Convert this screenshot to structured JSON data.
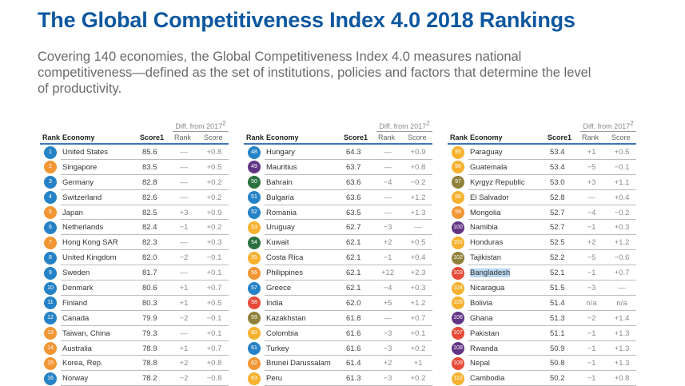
{
  "title": "The Global Competitiveness Index 4.0 2018 Rankings",
  "subtitle": "Covering 140 economies, the Global Competitiveness Index 4.0 measures national competitiveness—defined as the set of institutions, policies and factors that determine the level of productivity.",
  "headers": {
    "diff": "Diff. from 2017",
    "diff_sup": "2",
    "rank": "Rank",
    "economy": "Economy",
    "score": "Score1",
    "diff_rank": "Rank",
    "diff_score": "Score"
  },
  "region_colors": {
    "b": "#1b7cc4",
    "o": "#f2912a",
    "p": "#5a2b7e",
    "g": "#1f6a35",
    "y": "#f6ad23",
    "k": "#8a7a30",
    "r": "#e6412c"
  },
  "highlighted_economy": "Bangladesh",
  "tables": [
    {
      "rows": [
        {
          "rank": "1",
          "color": "b",
          "economy": "United States",
          "score": "85.6",
          "d_rank": "—",
          "d_score": "+0.8"
        },
        {
          "rank": "2",
          "color": "o",
          "economy": "Singapore",
          "score": "83.5",
          "d_rank": "—",
          "d_score": "+0.5"
        },
        {
          "rank": "3",
          "color": "b",
          "economy": "Germany",
          "score": "82.8",
          "d_rank": "—",
          "d_score": "+0.2"
        },
        {
          "rank": "4",
          "color": "b",
          "economy": "Switzerland",
          "score": "82.6",
          "d_rank": "—",
          "d_score": "+0.2"
        },
        {
          "rank": "5",
          "color": "o",
          "economy": "Japan",
          "score": "82.5",
          "d_rank": "+3",
          "d_score": "+0.9"
        },
        {
          "rank": "6",
          "color": "b",
          "economy": "Netherlands",
          "score": "82.4",
          "d_rank": "−1",
          "d_score": "+0.2"
        },
        {
          "rank": "7",
          "color": "o",
          "economy": "Hong Kong SAR",
          "score": "82.3",
          "d_rank": "—",
          "d_score": "+0.3"
        },
        {
          "rank": "8",
          "color": "b",
          "economy": "United Kingdom",
          "score": "82.0",
          "d_rank": "−2",
          "d_score": "−0.1"
        },
        {
          "rank": "9",
          "color": "b",
          "economy": "Sweden",
          "score": "81.7",
          "d_rank": "—",
          "d_score": "+0.1"
        },
        {
          "rank": "10",
          "color": "b",
          "economy": "Denmark",
          "score": "80.6",
          "d_rank": "+1",
          "d_score": "+0.7"
        },
        {
          "rank": "11",
          "color": "b",
          "economy": "Finland",
          "score": "80.3",
          "d_rank": "+1",
          "d_score": "+0.5"
        },
        {
          "rank": "12",
          "color": "b",
          "economy": "Canada",
          "score": "79.9",
          "d_rank": "−2",
          "d_score": "−0.1"
        },
        {
          "rank": "13",
          "color": "o",
          "economy": "Taiwan, China",
          "score": "79.3",
          "d_rank": "—",
          "d_score": "+0.1"
        },
        {
          "rank": "14",
          "color": "o",
          "economy": "Australia",
          "score": "78.9",
          "d_rank": "+1",
          "d_score": "+0.7"
        },
        {
          "rank": "15",
          "color": "o",
          "economy": "Korea, Rep.",
          "score": "78.8",
          "d_rank": "+2",
          "d_score": "+0.8"
        },
        {
          "rank": "16",
          "color": "b",
          "economy": "Norway",
          "score": "78.2",
          "d_rank": "−2",
          "d_score": "−0.8"
        }
      ]
    },
    {
      "rows": [
        {
          "rank": "48",
          "color": "b",
          "economy": "Hungary",
          "score": "64.3",
          "d_rank": "—",
          "d_score": "+0.9"
        },
        {
          "rank": "49",
          "color": "p",
          "economy": "Mauritius",
          "score": "63.7",
          "d_rank": "—",
          "d_score": "+0.8"
        },
        {
          "rank": "50",
          "color": "g",
          "economy": "Bahrain",
          "score": "63.6",
          "d_rank": "−4",
          "d_score": "−0.2"
        },
        {
          "rank": "51",
          "color": "b",
          "economy": "Bulgaria",
          "score": "63.6",
          "d_rank": "—",
          "d_score": "+1.2"
        },
        {
          "rank": "52",
          "color": "b",
          "economy": "Romania",
          "score": "63.5",
          "d_rank": "—",
          "d_score": "+1.3"
        },
        {
          "rank": "53",
          "color": "y",
          "economy": "Uruguay",
          "score": "62.7",
          "d_rank": "−3",
          "d_score": "—"
        },
        {
          "rank": "54",
          "color": "g",
          "economy": "Kuwait",
          "score": "62.1",
          "d_rank": "+2",
          "d_score": "+0.5"
        },
        {
          "rank": "55",
          "color": "y",
          "economy": "Costa Rica",
          "score": "62.1",
          "d_rank": "−1",
          "d_score": "+0.4"
        },
        {
          "rank": "56",
          "color": "o",
          "economy": "Philippines",
          "score": "62.1",
          "d_rank": "+12",
          "d_score": "+2.3"
        },
        {
          "rank": "57",
          "color": "b",
          "economy": "Greece",
          "score": "62.1",
          "d_rank": "−4",
          "d_score": "+0.3"
        },
        {
          "rank": "58",
          "color": "r",
          "economy": "India",
          "score": "62.0",
          "d_rank": "+5",
          "d_score": "+1.2"
        },
        {
          "rank": "59",
          "color": "k",
          "economy": "Kazakhstan",
          "score": "61.8",
          "d_rank": "—",
          "d_score": "+0.7"
        },
        {
          "rank": "60",
          "color": "y",
          "economy": "Colombia",
          "score": "61.6",
          "d_rank": "−3",
          "d_score": "+0.1"
        },
        {
          "rank": "61",
          "color": "b",
          "economy": "Turkey",
          "score": "61.6",
          "d_rank": "−3",
          "d_score": "+0.2"
        },
        {
          "rank": "62",
          "color": "o",
          "economy": "Brunei Darussalam",
          "score": "61.4",
          "d_rank": "+2",
          "d_score": "+1"
        },
        {
          "rank": "63",
          "color": "y",
          "economy": "Peru",
          "score": "61.3",
          "d_rank": "−3",
          "d_score": "+0.2"
        }
      ]
    },
    {
      "rows": [
        {
          "rank": "95",
          "color": "y",
          "economy": "Paraguay",
          "score": "53.4",
          "d_rank": "+1",
          "d_score": "+0.5"
        },
        {
          "rank": "96",
          "color": "y",
          "economy": "Guatemala",
          "score": "53.4",
          "d_rank": "−5",
          "d_score": "−0.1"
        },
        {
          "rank": "97",
          "color": "k",
          "economy": "Kyrgyz Republic",
          "score": "53.0",
          "d_rank": "+3",
          "d_score": "+1.1"
        },
        {
          "rank": "98",
          "color": "y",
          "economy": "El Salvador",
          "score": "52.8",
          "d_rank": "—",
          "d_score": "+0.4"
        },
        {
          "rank": "99",
          "color": "o",
          "economy": "Mongolia",
          "score": "52.7",
          "d_rank": "−4",
          "d_score": "−0.2"
        },
        {
          "rank": "100",
          "color": "p",
          "economy": "Namibia",
          "score": "52.7",
          "d_rank": "−1",
          "d_score": "+0.3"
        },
        {
          "rank": "101",
          "color": "y",
          "economy": "Honduras",
          "score": "52.5",
          "d_rank": "+2",
          "d_score": "+1.2"
        },
        {
          "rank": "102",
          "color": "k",
          "economy": "Tajikistan",
          "score": "52.2",
          "d_rank": "−5",
          "d_score": "−0.6"
        },
        {
          "rank": "103",
          "color": "r",
          "economy": "Bangladesh",
          "score": "52.1",
          "d_rank": "−1",
          "d_score": "+0.7"
        },
        {
          "rank": "104",
          "color": "y",
          "economy": "Nicaragua",
          "score": "51.5",
          "d_rank": "−3",
          "d_score": "—"
        },
        {
          "rank": "105",
          "color": "y",
          "economy": "Bolivia",
          "score": "51.4",
          "d_rank": "n/a",
          "d_score": "n/a"
        },
        {
          "rank": "106",
          "color": "p",
          "economy": "Ghana",
          "score": "51.3",
          "d_rank": "−2",
          "d_score": "+1.4"
        },
        {
          "rank": "107",
          "color": "r",
          "economy": "Pakistan",
          "score": "51.1",
          "d_rank": "−1",
          "d_score": "+1.3"
        },
        {
          "rank": "108",
          "color": "p",
          "economy": "Rwanda",
          "score": "50.9",
          "d_rank": "−1",
          "d_score": "+1.3"
        },
        {
          "rank": "109",
          "color": "r",
          "economy": "Nepal",
          "score": "50.8",
          "d_rank": "−1",
          "d_score": "+1.3"
        },
        {
          "rank": "110",
          "color": "y",
          "economy": "Cambodia",
          "score": "50.2",
          "d_rank": "−1",
          "d_score": "+0.8"
        }
      ]
    }
  ]
}
